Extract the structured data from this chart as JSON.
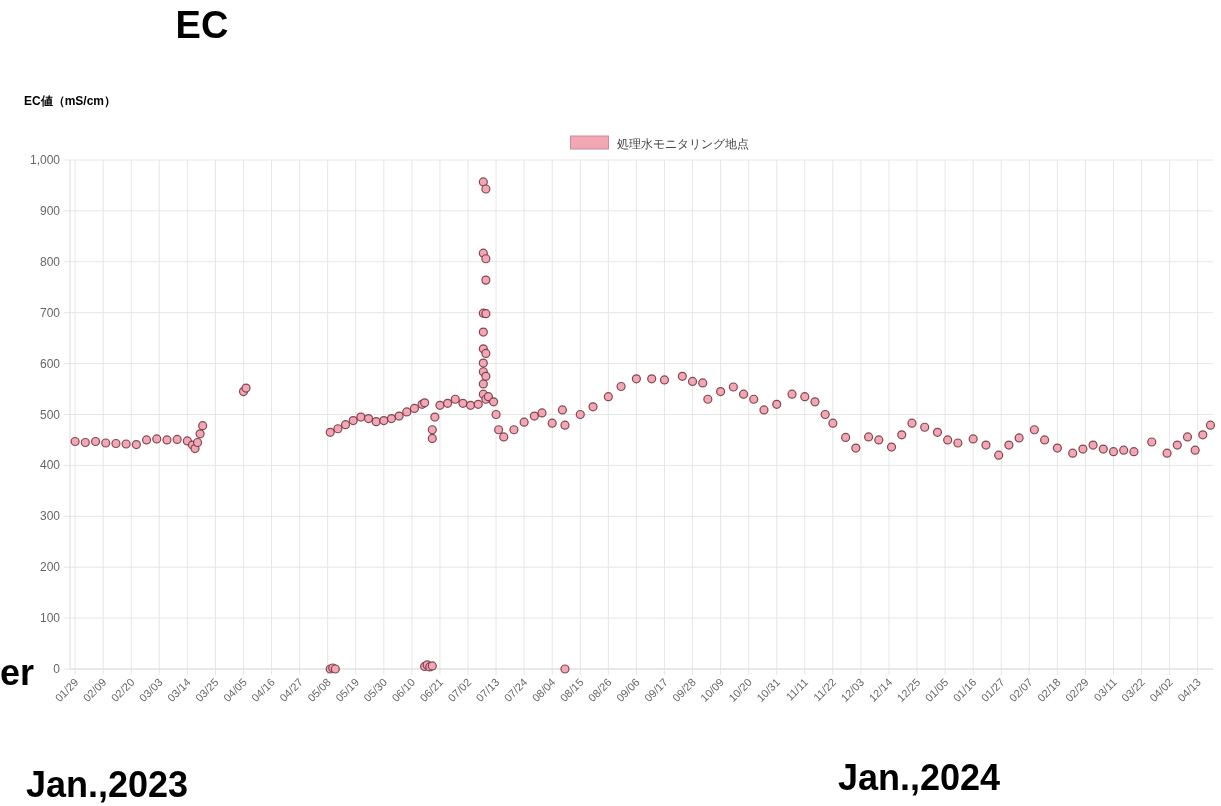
{
  "chart_data": {
    "type": "scatter",
    "title": "EC",
    "ylabel": "EC値（mS/cm）",
    "annotations": [
      "er",
      "Jan.,2023",
      "Jan.,2024"
    ],
    "xlim": [
      "2023-01-27",
      "2024-04-19"
    ],
    "ylim": [
      0,
      1000
    ],
    "yticks": [
      {
        "value": 0,
        "label": "0"
      },
      {
        "value": 100,
        "label": "100"
      },
      {
        "value": 200,
        "label": "200"
      },
      {
        "value": 300,
        "label": "300"
      },
      {
        "value": 400,
        "label": "400"
      },
      {
        "value": 500,
        "label": "500"
      },
      {
        "value": 600,
        "label": "600"
      },
      {
        "value": 700,
        "label": "700"
      },
      {
        "value": 800,
        "label": "800"
      },
      {
        "value": 900,
        "label": "900"
      },
      {
        "value": 1000,
        "label": "1,000"
      }
    ],
    "xticks": [
      {
        "value": "2023-01-29",
        "label": "01/29"
      },
      {
        "value": "2023-02-09",
        "label": "02/09"
      },
      {
        "value": "2023-02-20",
        "label": "02/20"
      },
      {
        "value": "2023-03-03",
        "label": "03/03"
      },
      {
        "value": "2023-03-14",
        "label": "03/14"
      },
      {
        "value": "2023-03-25",
        "label": "03/25"
      },
      {
        "value": "2023-04-05",
        "label": "04/05"
      },
      {
        "value": "2023-04-16",
        "label": "04/16"
      },
      {
        "value": "2023-04-27",
        "label": "04/27"
      },
      {
        "value": "2023-05-08",
        "label": "05/08"
      },
      {
        "value": "2023-05-19",
        "label": "05/19"
      },
      {
        "value": "2023-05-30",
        "label": "05/30"
      },
      {
        "value": "2023-06-10",
        "label": "06/10"
      },
      {
        "value": "2023-06-21",
        "label": "06/21"
      },
      {
        "value": "2023-07-02",
        "label": "07/02"
      },
      {
        "value": "2023-07-13",
        "label": "07/13"
      },
      {
        "value": "2023-07-24",
        "label": "07/24"
      },
      {
        "value": "2023-08-04",
        "label": "08/04"
      },
      {
        "value": "2023-08-15",
        "label": "08/15"
      },
      {
        "value": "2023-08-26",
        "label": "08/26"
      },
      {
        "value": "2023-09-06",
        "label": "09/06"
      },
      {
        "value": "2023-09-17",
        "label": "09/17"
      },
      {
        "value": "2023-09-28",
        "label": "09/28"
      },
      {
        "value": "2023-10-09",
        "label": "10/09"
      },
      {
        "value": "2023-10-20",
        "label": "10/20"
      },
      {
        "value": "2023-10-31",
        "label": "10/31"
      },
      {
        "value": "2023-11-11",
        "label": "11/11"
      },
      {
        "value": "2023-11-22",
        "label": "11/22"
      },
      {
        "value": "2023-12-03",
        "label": "12/03"
      },
      {
        "value": "2023-12-14",
        "label": "12/14"
      },
      {
        "value": "2023-12-25",
        "label": "12/25"
      },
      {
        "value": "2024-01-05",
        "label": "01/05"
      },
      {
        "value": "2024-01-16",
        "label": "01/16"
      },
      {
        "value": "2024-01-27",
        "label": "01/27"
      },
      {
        "value": "2024-02-07",
        "label": "02/07"
      },
      {
        "value": "2024-02-18",
        "label": "02/18"
      },
      {
        "value": "2024-02-29",
        "label": "02/29"
      },
      {
        "value": "2024-03-11",
        "label": "03/11"
      },
      {
        "value": "2024-03-22",
        "label": "03/22"
      },
      {
        "value": "2024-04-02",
        "label": "04/02"
      },
      {
        "value": "2024-04-13",
        "label": "04/13"
      }
    ],
    "grid": true,
    "legend": "top",
    "marker": "circle",
    "series": [
      {
        "name": "処理水モニタリング地点",
        "color": "#f2a7b5",
        "x": [
          "2023-01-29",
          "2023-02-02",
          "2023-02-06",
          "2023-02-10",
          "2023-02-14",
          "2023-02-18",
          "2023-02-22",
          "2023-02-26",
          "2023-03-02",
          "2023-03-06",
          "2023-03-10",
          "2023-03-14",
          "2023-03-16",
          "2023-03-17",
          "2023-03-18",
          "2023-03-19",
          "2023-03-20",
          "2023-04-05",
          "2023-04-06",
          "2023-05-09",
          "2023-05-10",
          "2023-05-11",
          "2023-05-09",
          "2023-05-12",
          "2023-05-15",
          "2023-05-18",
          "2023-05-21",
          "2023-05-24",
          "2023-05-27",
          "2023-05-30",
          "2023-06-02",
          "2023-06-05",
          "2023-06-08",
          "2023-06-11",
          "2023-06-14",
          "2023-06-15",
          "2023-06-15",
          "2023-06-16",
          "2023-06-17",
          "2023-06-18",
          "2023-06-18",
          "2023-06-18",
          "2023-06-19",
          "2023-06-21",
          "2023-06-24",
          "2023-06-27",
          "2023-06-30",
          "2023-07-03",
          "2023-07-06",
          "2023-07-08",
          "2023-07-08",
          "2023-07-08",
          "2023-07-08",
          "2023-07-08",
          "2023-07-08",
          "2023-07-08",
          "2023-07-08",
          "2023-07-08",
          "2023-07-09",
          "2023-07-09",
          "2023-07-09",
          "2023-07-09",
          "2023-07-09",
          "2023-07-09",
          "2023-07-09",
          "2023-07-10",
          "2023-07-12",
          "2023-07-13",
          "2023-07-14",
          "2023-07-16",
          "2023-07-20",
          "2023-07-24",
          "2023-07-28",
          "2023-07-31",
          "2023-08-04",
          "2023-08-08",
          "2023-08-09",
          "2023-08-09",
          "2023-08-15",
          "2023-08-20",
          "2023-08-26",
          "2023-08-31",
          "2023-09-06",
          "2023-09-12",
          "2023-09-17",
          "2023-09-24",
          "2023-09-28",
          "2023-10-02",
          "2023-10-04",
          "2023-10-09",
          "2023-10-14",
          "2023-10-18",
          "2023-10-22",
          "2023-10-26",
          "2023-10-31",
          "2023-11-06",
          "2023-11-11",
          "2023-11-15",
          "2023-11-19",
          "2023-11-22",
          "2023-11-27",
          "2023-12-01",
          "2023-12-06",
          "2023-12-10",
          "2023-12-15",
          "2023-12-19",
          "2023-12-23",
          "2023-12-28",
          "2024-01-02",
          "2024-01-06",
          "2024-01-10",
          "2024-01-16",
          "2024-01-21",
          "2024-01-26",
          "2024-01-30",
          "2024-02-03",
          "2024-02-09",
          "2024-02-13",
          "2024-02-18",
          "2024-02-24",
          "2024-02-28",
          "2024-03-03",
          "2024-03-07",
          "2024-03-11",
          "2024-03-15",
          "2024-03-19",
          "2024-03-26",
          "2024-04-01",
          "2024-04-05",
          "2024-04-09",
          "2024-04-12",
          "2024-04-15",
          "2024-04-18"
        ],
        "values": [
          447,
          445,
          447,
          444,
          443,
          442,
          441,
          450,
          452,
          450,
          451,
          448,
          440,
          433,
          445,
          462,
          478,
          545,
          552,
          0,
          2,
          0,
          465,
          472,
          480,
          488,
          495,
          492,
          486,
          488,
          492,
          497,
          505,
          512,
          520,
          523,
          5,
          8,
          4,
          6,
          453,
          470,
          495,
          518,
          522,
          530,
          522,
          518,
          520,
          540,
          560,
          584,
          601,
          629,
          662,
          699,
          817,
          957,
          943,
          806,
          764,
          698,
          620,
          575,
          530,
          535,
          525,
          500,
          470,
          456,
          470,
          485,
          497,
          503,
          483,
          509,
          479,
          0,
          500,
          515,
          535,
          555,
          570,
          570,
          568,
          575,
          565,
          562,
          530,
          545,
          554,
          540,
          530,
          509,
          520,
          540,
          535,
          525,
          500,
          483,
          455,
          434,
          456,
          450,
          436,
          460,
          483,
          475,
          465,
          450,
          444,
          452,
          440,
          420,
          440,
          454,
          470,
          450,
          434,
          424,
          432,
          440,
          432,
          427,
          430,
          427,
          446,
          424,
          440,
          456,
          430,
          460,
          479
        ]
      }
    ]
  }
}
